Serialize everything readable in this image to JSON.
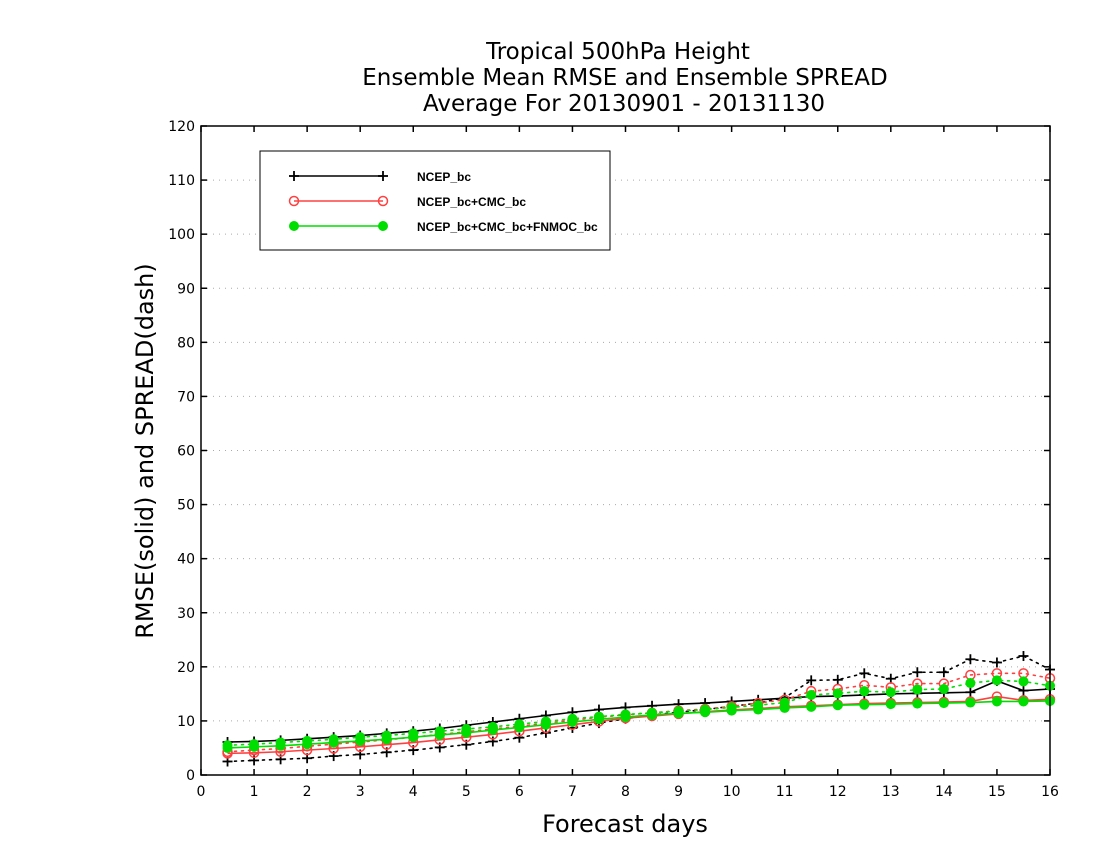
{
  "chart_data": {
    "type": "line",
    "title_lines": [
      "Tropical 500hPa Height",
      "Ensemble Mean RMSE and Ensemble SPREAD",
      "Average For 20130901 - 20131130"
    ],
    "xlabel": "Forecast days",
    "ylabel": "RMSE(solid) and SPREAD(dash)",
    "xlim": [
      0,
      16
    ],
    "ylim": [
      0,
      120
    ],
    "xticks": [
      0,
      1,
      2,
      3,
      4,
      5,
      6,
      7,
      8,
      9,
      10,
      11,
      12,
      13,
      14,
      15,
      16
    ],
    "yticks": [
      0,
      10,
      20,
      30,
      40,
      50,
      60,
      70,
      80,
      90,
      100,
      110,
      120
    ],
    "grid": "horizontal dotted",
    "legend_position": "top-left",
    "x": [
      0.5,
      1,
      1.5,
      2,
      2.5,
      3,
      3.5,
      4,
      4.5,
      5,
      5.5,
      6,
      6.5,
      7,
      7.5,
      8,
      8.5,
      9,
      9.5,
      10,
      10.5,
      11,
      11.5,
      12,
      12.5,
      13,
      13.5,
      14,
      14.5,
      15,
      15.5,
      16
    ],
    "series": [
      {
        "name": "NCEP_bc",
        "color": "#000000",
        "marker": "plus",
        "rmse": [
          6.1,
          6.2,
          6.4,
          6.7,
          7.0,
          7.3,
          7.7,
          8.1,
          8.6,
          9.2,
          9.8,
          10.4,
          11.0,
          11.6,
          12.1,
          12.5,
          12.8,
          13.1,
          13.3,
          13.6,
          13.9,
          14.2,
          14.5,
          14.6,
          14.8,
          15.0,
          15.1,
          15.2,
          15.3,
          17.4,
          15.6,
          15.9
        ],
        "spread": [
          2.5,
          2.7,
          2.9,
          3.1,
          3.5,
          3.8,
          4.2,
          4.6,
          5.1,
          5.6,
          6.2,
          6.9,
          7.8,
          8.7,
          9.6,
          10.4,
          11.1,
          11.6,
          12.1,
          12.7,
          13.3,
          14.3,
          17.5,
          17.6,
          18.8,
          17.8,
          19.0,
          19.0,
          21.4,
          20.8,
          22.0,
          19.5
        ]
      },
      {
        "name": "NCEP_bc+CMC_bc",
        "color": "#ff4040",
        "marker": "open-circle",
        "rmse": [
          4.0,
          4.1,
          4.3,
          4.6,
          4.9,
          5.2,
          5.6,
          6.0,
          6.5,
          7.0,
          7.5,
          8.1,
          8.7,
          9.3,
          9.9,
          10.5,
          10.9,
          11.3,
          11.7,
          12.0,
          12.3,
          12.6,
          12.8,
          13.0,
          13.2,
          13.3,
          13.4,
          13.5,
          13.6,
          14.5,
          13.8,
          14.0
        ],
        "spread": [
          4.3,
          4.6,
          4.9,
          5.3,
          5.7,
          6.1,
          6.5,
          7.0,
          7.5,
          8.0,
          8.5,
          9.0,
          9.6,
          10.1,
          10.7,
          11.1,
          11.5,
          11.9,
          12.2,
          12.7,
          13.3,
          13.9,
          15.5,
          15.9,
          16.6,
          16.2,
          16.9,
          16.9,
          18.5,
          18.8,
          18.8,
          17.9
        ]
      },
      {
        "name": "NCEP_bc+CMC_bc+FNMOC_bc",
        "color": "#00dd00",
        "marker": "filled-circle",
        "rmse": [
          5.0,
          5.2,
          5.4,
          5.7,
          6.0,
          6.3,
          6.6,
          7.0,
          7.4,
          7.8,
          8.3,
          8.8,
          9.3,
          9.8,
          10.3,
          10.7,
          11.1,
          11.4,
          11.6,
          11.9,
          12.1,
          12.4,
          12.6,
          12.9,
          13.0,
          13.1,
          13.2,
          13.3,
          13.4,
          13.6,
          13.6,
          13.7
        ],
        "spread": [
          5.5,
          5.7,
          6.0,
          6.3,
          6.6,
          7.0,
          7.3,
          7.7,
          8.1,
          8.5,
          8.9,
          9.4,
          9.9,
          10.4,
          10.8,
          11.2,
          11.5,
          11.8,
          12.1,
          12.5,
          12.9,
          13.4,
          14.8,
          15.1,
          15.5,
          15.3,
          15.8,
          15.9,
          17.0,
          17.5,
          17.3,
          16.5
        ]
      }
    ]
  }
}
